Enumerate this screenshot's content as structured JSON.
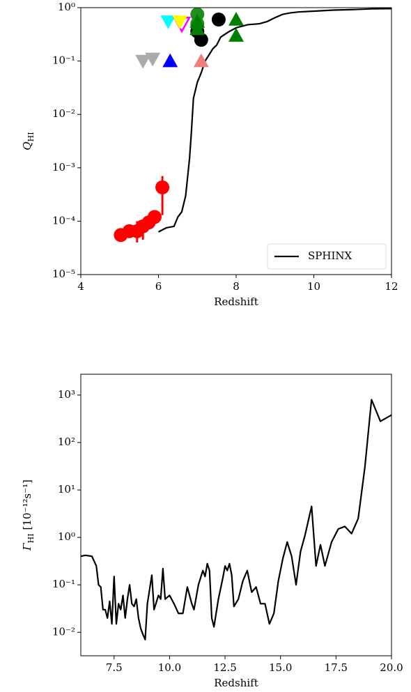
{
  "chart_data": [
    {
      "type": "line",
      "xlabel": "Redshift",
      "ylabel": {
        "symbol": "Q",
        "subscript": "HI"
      },
      "xlim": [
        4,
        12
      ],
      "xticks": [
        4,
        6,
        8,
        10,
        12
      ],
      "ylim": [
        1e-05,
        1
      ],
      "ylog": true,
      "yticks": [
        {
          "value": 1e-05,
          "label": "10⁻⁵"
        },
        {
          "value": 0.0001,
          "label": "10⁻⁴"
        },
        {
          "value": 0.001,
          "label": "10⁻³"
        },
        {
          "value": 0.01,
          "label": "10⁻²"
        },
        {
          "value": 0.1,
          "label": "10⁻¹"
        },
        {
          "value": 1,
          "label": "10⁰"
        }
      ],
      "legend": "lower right",
      "series": [
        {
          "name": "SPHINX",
          "color": "#000000",
          "x": [
            6.0,
            6.2,
            6.4,
            6.5,
            6.6,
            6.7,
            6.8,
            6.85,
            6.9,
            7.0,
            7.1,
            7.2,
            7.3,
            7.4,
            7.5,
            7.6,
            7.8,
            8.0,
            8.3,
            8.6,
            8.8,
            9.0,
            9.2,
            9.4,
            9.6,
            10.0,
            10.5,
            11.0,
            11.5,
            12.0
          ],
          "values": [
            6.3e-05,
            7.5e-05,
            8e-05,
            0.00012,
            0.00015,
            0.0003,
            0.0015,
            0.005,
            0.02,
            0.04,
            0.06,
            0.1,
            0.13,
            0.17,
            0.2,
            0.28,
            0.35,
            0.42,
            0.48,
            0.5,
            0.55,
            0.65,
            0.75,
            0.8,
            0.83,
            0.86,
            0.9,
            0.92,
            0.95,
            0.96
          ]
        }
      ],
      "points": [
        {
          "marker": "circle",
          "color": "#ff0000",
          "x": [
            5.03,
            5.25,
            5.45,
            5.6,
            5.75,
            5.9,
            6.1
          ],
          "values": [
            5.5e-05,
            6.5e-05,
            6.5e-05,
            8e-05,
            9.5e-05,
            0.00012,
            0.00043
          ],
          "lower": [
            5e-05,
            5e-05,
            4e-05,
            4.5e-05,
            8e-05,
            0.0001,
            0.00013
          ],
          "upper": [
            6e-05,
            8e-05,
            0.0001,
            0.0001,
            0.00011,
            0.00014,
            0.0007
          ]
        },
        {
          "marker": "triangle-down",
          "color": "#aaaaaa",
          "x": [
            5.6,
            5.85
          ],
          "values": [
            0.1,
            0.11
          ]
        },
        {
          "marker": "triangle-up",
          "color": "#0000ff",
          "x": [
            6.3
          ],
          "values": [
            0.1
          ]
        },
        {
          "marker": "triangle-up",
          "color": "#f08080",
          "x": [
            7.1
          ],
          "values": [
            0.1
          ]
        },
        {
          "marker": "triangle-down",
          "color": "#00ffff",
          "x": [
            6.25
          ],
          "values": [
            0.55
          ]
        },
        {
          "marker": "triangle-down-open",
          "color": "#ff00ff",
          "x": [
            6.6
          ],
          "values": [
            0.5
          ]
        },
        {
          "marker": "triangle-down",
          "color": "#ffff00",
          "x": [
            6.55
          ],
          "values": [
            0.55
          ]
        },
        {
          "marker": "circle",
          "color": "#000000",
          "x": [
            7.0,
            7.1,
            7.55
          ],
          "values": [
            0.36,
            0.25,
            0.6
          ]
        },
        {
          "marker": "circle",
          "color": "#228b22",
          "x": [
            7.0,
            7.0
          ],
          "values": [
            0.75,
            0.5
          ]
        },
        {
          "marker": "triangle-up",
          "color": "#008000",
          "x": [
            7.0,
            7.0,
            8.0,
            8.0
          ],
          "values": [
            0.55,
            0.4,
            0.6,
            0.3
          ]
        }
      ]
    },
    {
      "type": "line",
      "xlabel": "Redshift",
      "ylabel": {
        "symbol": "Γ",
        "subscript": "HI",
        "unit": "[10⁻¹²s⁻¹]"
      },
      "xlim": [
        6,
        20
      ],
      "xticks": [
        {
          "value": 7.5,
          "label": "7.5"
        },
        {
          "value": 10,
          "label": "10.0"
        },
        {
          "value": 12.5,
          "label": "12.5"
        },
        {
          "value": 15,
          "label": "15.0"
        },
        {
          "value": 17.5,
          "label": "17.5"
        },
        {
          "value": 20,
          "label": "20.0"
        }
      ],
      "ylim": [
        0.0032,
        2750
      ],
      "ylog": true,
      "yticks": [
        {
          "value": 0.01,
          "label": "10⁻²"
        },
        {
          "value": 0.1,
          "label": "10⁻¹"
        },
        {
          "value": 1,
          "label": "10⁰"
        },
        {
          "value": 10,
          "label": "10¹"
        },
        {
          "value": 100,
          "label": "10²"
        },
        {
          "value": 1000,
          "label": "10³"
        }
      ],
      "series": [
        {
          "color": "#000000",
          "x": [
            6.0,
            6.2,
            6.5,
            6.7,
            6.8,
            6.9,
            7.0,
            7.1,
            7.2,
            7.3,
            7.4,
            7.5,
            7.6,
            7.7,
            7.8,
            7.9,
            8.0,
            8.1,
            8.2,
            8.3,
            8.4,
            8.5,
            8.6,
            8.7,
            8.8,
            8.9,
            9.0,
            9.2,
            9.3,
            9.5,
            9.6,
            9.7,
            9.8,
            10.0,
            10.2,
            10.4,
            10.6,
            10.8,
            11.0,
            11.1,
            11.3,
            11.5,
            11.6,
            11.7,
            11.8,
            11.9,
            12.0,
            12.2,
            12.4,
            12.5,
            12.6,
            12.7,
            12.8,
            12.9,
            13.1,
            13.3,
            13.5,
            13.7,
            13.9,
            14.1,
            14.3,
            14.5,
            14.7,
            14.9,
            15.1,
            15.3,
            15.5,
            15.7,
            15.9,
            16.1,
            16.4,
            16.6,
            16.8,
            17.0,
            17.3,
            17.6,
            17.9,
            18.2,
            18.5,
            18.8,
            19.1,
            19.5,
            20.0
          ],
          "values": [
            0.4,
            0.42,
            0.4,
            0.25,
            0.1,
            0.09,
            0.03,
            0.03,
            0.02,
            0.045,
            0.015,
            0.15,
            0.015,
            0.04,
            0.03,
            0.06,
            0.02,
            0.05,
            0.1,
            0.04,
            0.035,
            0.05,
            0.02,
            0.012,
            0.009,
            0.007,
            0.04,
            0.16,
            0.03,
            0.06,
            0.05,
            0.22,
            0.05,
            0.06,
            0.04,
            0.025,
            0.025,
            0.09,
            0.04,
            0.03,
            0.1,
            0.2,
            0.15,
            0.28,
            0.2,
            0.02,
            0.013,
            0.05,
            0.14,
            0.25,
            0.2,
            0.28,
            0.16,
            0.035,
            0.05,
            0.12,
            0.2,
            0.07,
            0.09,
            0.04,
            0.04,
            0.015,
            0.025,
            0.12,
            0.35,
            0.8,
            0.4,
            0.1,
            0.5,
            1.1,
            4.5,
            0.25,
            0.7,
            0.25,
            0.8,
            1.5,
            1.7,
            1.2,
            2.5,
            30,
            800,
            280,
            380
          ]
        }
      ]
    }
  ]
}
